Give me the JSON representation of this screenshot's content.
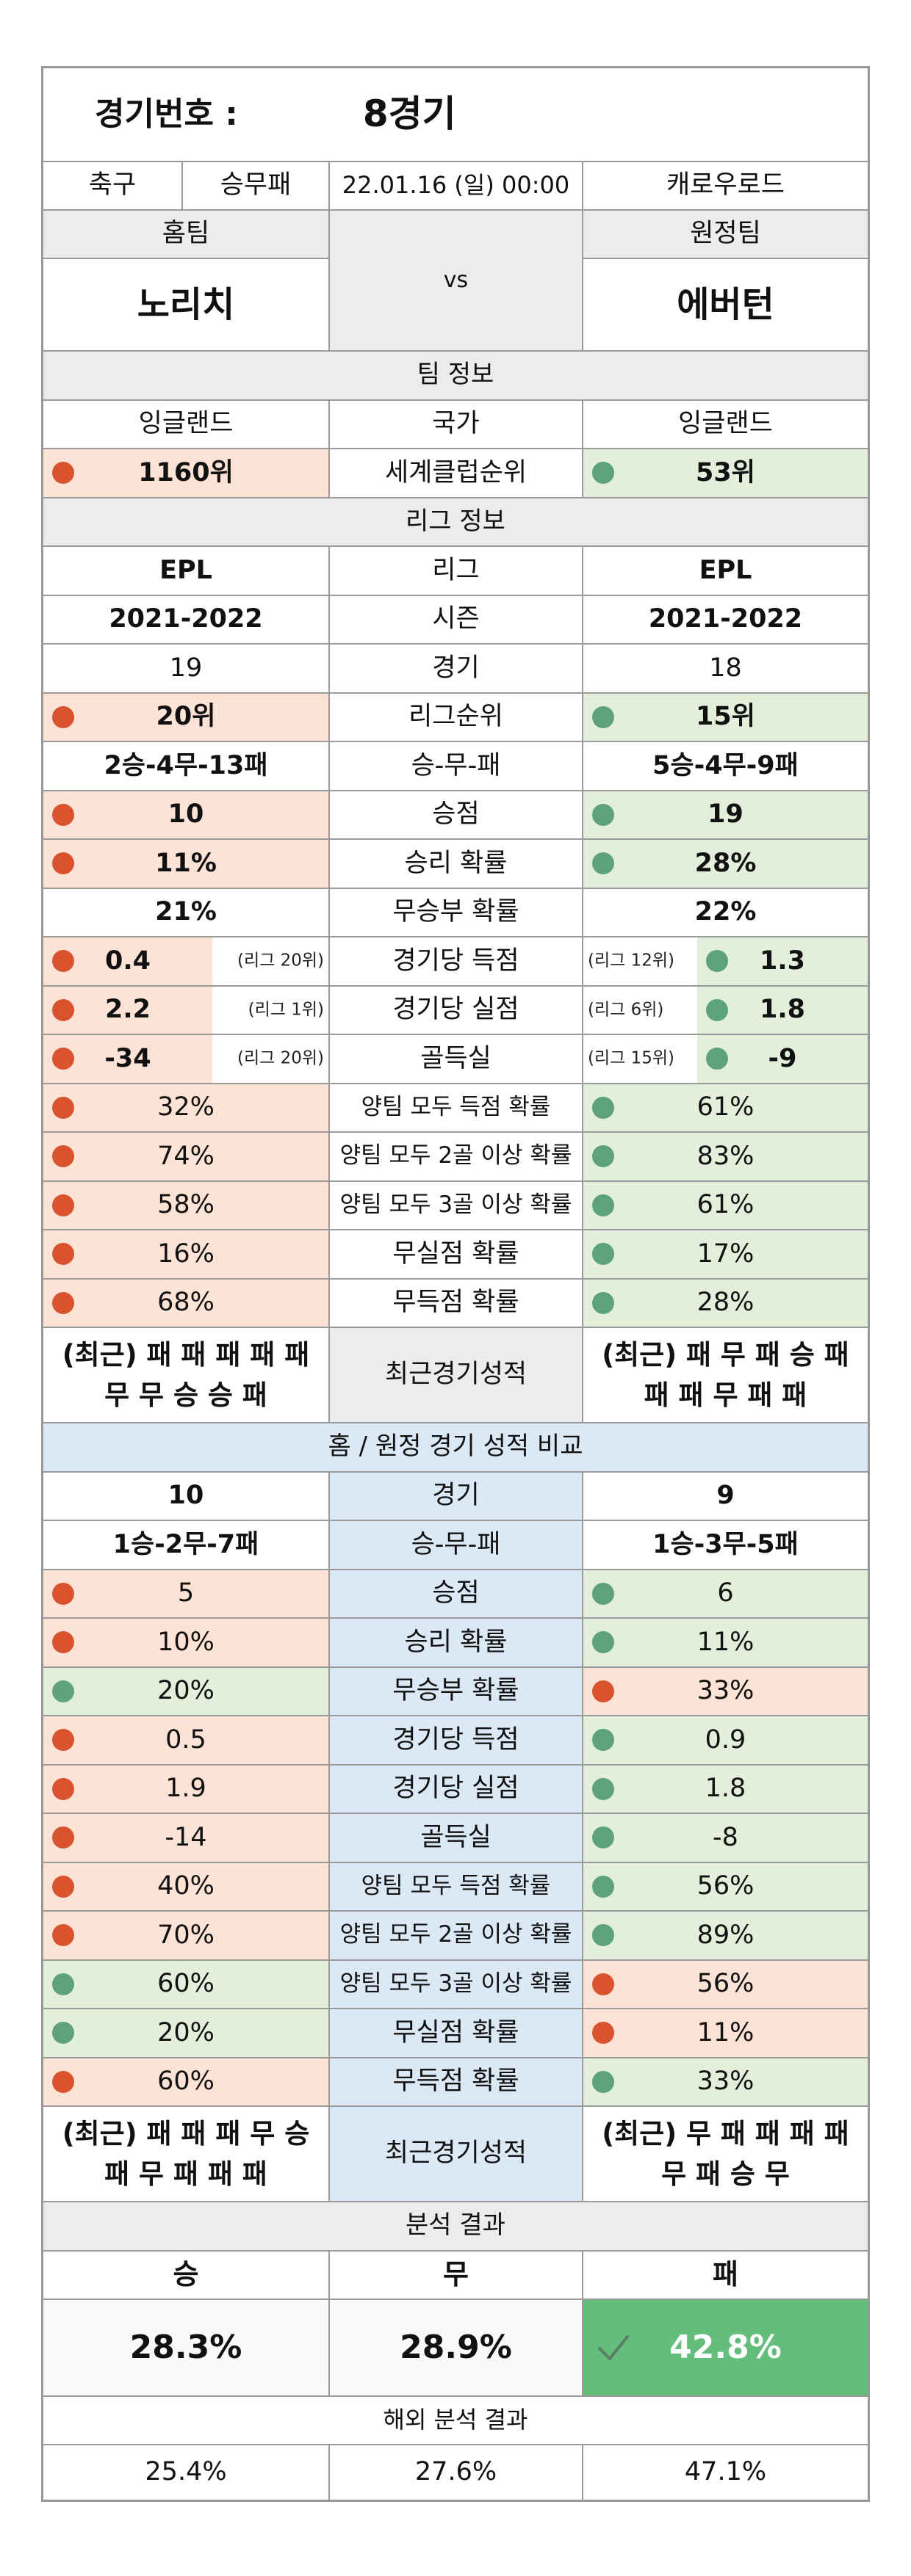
{
  "header": {
    "match_label": "경기번호 :",
    "match_value": "8경기",
    "sport": "축구",
    "bet_type": "승무패",
    "datetime": "22.01.16 (일) 00:00",
    "venue": "캐로우로드"
  },
  "teams": {
    "home_label": "홈팀",
    "away_label": "원정팀",
    "vs": "vs",
    "home_name": "노리치",
    "away_name": "에버턴"
  },
  "team_info": {
    "section_title": "팀 정보",
    "country_label": "국가",
    "home_country": "잉글랜드",
    "away_country": "잉글랜드",
    "club_rank_label": "세계클럽순위",
    "home_club_rank": "1160위",
    "away_club_rank": "53위"
  },
  "league_info": {
    "section_title": "리그 정보",
    "rows": [
      {
        "label": "리그",
        "home": "EPL",
        "away": "EPL",
        "style": "plain",
        "bold": true
      },
      {
        "label": "시즌",
        "home": "2021-2022",
        "away": "2021-2022",
        "style": "plain",
        "bold": true
      },
      {
        "label": "경기",
        "home": "19",
        "away": "18",
        "style": "plain",
        "bold": false
      },
      {
        "label": "리그순위",
        "home": "20위",
        "away": "15위",
        "style": "rg",
        "bold": true
      },
      {
        "label": "승-무-패",
        "home": "2승-4무-13패",
        "away": "5승-4무-9패",
        "style": "plain",
        "bold": true
      },
      {
        "label": "승점",
        "home": "10",
        "away": "19",
        "style": "rg",
        "bold": true
      },
      {
        "label": "승리 확률",
        "home": "11%",
        "away": "28%",
        "style": "rg",
        "bold": true
      },
      {
        "label": "무승부 확률",
        "home": "21%",
        "away": "22%",
        "style": "plain",
        "bold": true
      },
      {
        "label": "경기당 득점",
        "home": "0.4",
        "away": "1.3",
        "home_rank": "(리그 20위)",
        "away_rank": "(리그 12위)",
        "style": "rank",
        "bold": true
      },
      {
        "label": "경기당 실점",
        "home": "2.2",
        "away": "1.8",
        "home_rank": "(리그 1위)",
        "away_rank": "(리그 6위)",
        "style": "rank",
        "bold": true
      },
      {
        "label": "골득실",
        "home": "-34",
        "away": "-9",
        "home_rank": "(리그 20위)",
        "away_rank": "(리그 15위)",
        "style": "rank",
        "bold": true
      },
      {
        "label": "양팀 모두 득점 확률",
        "home": "32%",
        "away": "61%",
        "style": "rg",
        "bold": false
      },
      {
        "label": "양팀 모두 2골 이상 확률",
        "home": "74%",
        "away": "83%",
        "style": "rg",
        "bold": false
      },
      {
        "label": "양팀 모두 3골 이상 확률",
        "home": "58%",
        "away": "61%",
        "style": "rg",
        "bold": false
      },
      {
        "label": "무실점 확률",
        "home": "16%",
        "away": "17%",
        "style": "rg",
        "bold": false
      },
      {
        "label": "무득점 확률",
        "home": "68%",
        "away": "28%",
        "style": "rg",
        "bold": false
      }
    ],
    "recent_label": "최근경기성적",
    "home_recent_1": "(최근) 패 패 패 패 패",
    "home_recent_2": "무 무 승 승 패",
    "away_recent_1": "(최근) 패 무 패 승 패",
    "away_recent_2": "패 패 무 패 패"
  },
  "home_away": {
    "section_title": "홈 / 원정 경기 성적 비교",
    "rows": [
      {
        "label": "경기",
        "home": "10",
        "away": "9",
        "home_color": "plain",
        "away_color": "plain"
      },
      {
        "label": "승-무-패",
        "home": "1승-2무-7패",
        "away": "1승-3무-5패",
        "home_color": "plain",
        "away_color": "plain"
      },
      {
        "label": "승점",
        "home": "5",
        "away": "6",
        "home_color": "red",
        "away_color": "green"
      },
      {
        "label": "승리 확률",
        "home": "10%",
        "away": "11%",
        "home_color": "red",
        "away_color": "green"
      },
      {
        "label": "무승부 확률",
        "home": "20%",
        "away": "33%",
        "home_color": "green",
        "away_color": "red"
      },
      {
        "label": "경기당 득점",
        "home": "0.5",
        "away": "0.9",
        "home_color": "red",
        "away_color": "green"
      },
      {
        "label": "경기당 실점",
        "home": "1.9",
        "away": "1.8",
        "home_color": "red",
        "away_color": "green"
      },
      {
        "label": "골득실",
        "home": "-14",
        "away": "-8",
        "home_color": "red",
        "away_color": "green"
      },
      {
        "label": "양팀 모두 득점 확률",
        "home": "40%",
        "away": "56%",
        "home_color": "red",
        "away_color": "green"
      },
      {
        "label": "양팀 모두 2골 이상 확률",
        "home": "70%",
        "away": "89%",
        "home_color": "red",
        "away_color": "green"
      },
      {
        "label": "양팀 모두 3골 이상 확률",
        "home": "60%",
        "away": "56%",
        "home_color": "green",
        "away_color": "red"
      },
      {
        "label": "무실점 확률",
        "home": "20%",
        "away": "11%",
        "home_color": "green",
        "away_color": "red"
      },
      {
        "label": "무득점 확률",
        "home": "60%",
        "away": "33%",
        "home_color": "red",
        "away_color": "green"
      }
    ],
    "recent_label": "최근경기성적",
    "home_recent_1": "(최근) 패 패 패 무 승",
    "home_recent_2": "패 무 패 패 패",
    "away_recent_1": "(최근) 무 패 패 패 패",
    "away_recent_2": "무 패 승 무"
  },
  "analysis": {
    "section_title": "분석 결과",
    "win_label": "승",
    "draw_label": "무",
    "loss_label": "패",
    "win": "28.3%",
    "draw": "28.9%",
    "loss": "42.8%",
    "overseas_title": "해외 분석 결과",
    "overseas_win": "25.4%",
    "overseas_draw": "27.6%",
    "overseas_loss": "47.1%"
  },
  "colors": {
    "red_bg": "#fde2d6",
    "green_bg": "#e3efdb",
    "blue_bg": "#dbe8f5",
    "gray_bg": "#ececec",
    "red_dot": "#d9532e",
    "green_dot": "#5ea27a",
    "pick_bg": "#63be7b"
  }
}
